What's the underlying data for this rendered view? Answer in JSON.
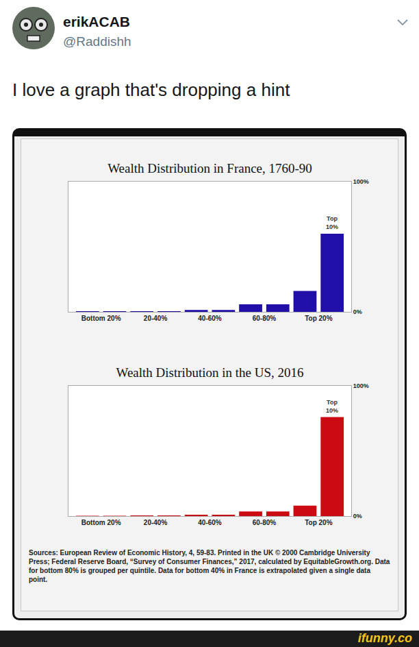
{
  "tweet": {
    "name": "erikACAB",
    "handle": "@Raddishh",
    "text": "I love a graph that's dropping a hint"
  },
  "chart_data": [
    {
      "type": "bar",
      "title": "Wealth Distribution in France, 1760-90",
      "categories": [
        "Bottom 20%",
        null,
        "20-40%",
        null,
        "40-60%",
        null,
        "60-80%",
        null,
        "Top 20%",
        null
      ],
      "values": [
        0.5,
        0.5,
        0.5,
        0.5,
        1.5,
        1.5,
        5.8,
        5.8,
        16,
        60
      ],
      "color": "#2010a8",
      "ylim": [
        0,
        100
      ],
      "yticks": [
        {
          "value": 0,
          "label": "0%"
        },
        {
          "value": 100,
          "label": "100%"
        }
      ],
      "grid": true,
      "annotations": [
        {
          "text": "Top 10%",
          "category_index": 9
        }
      ]
    },
    {
      "type": "bar",
      "title": "Wealth Distribution in the US, 2016",
      "categories": [
        "Bottom 20%",
        null,
        "20-40%",
        null,
        "40-60%",
        null,
        "60-80%",
        null,
        "Top 20%",
        null
      ],
      "values": [
        0.3,
        0.3,
        0.5,
        0.5,
        1,
        1,
        3.5,
        3.5,
        8,
        76
      ],
      "color": "#cc0a12",
      "ylim": [
        0,
        100
      ],
      "yticks": [
        {
          "value": 0,
          "label": "0%"
        },
        {
          "value": 100,
          "label": "100%"
        }
      ],
      "grid": true,
      "annotations": [
        {
          "text": "Top 10%",
          "category_index": 9
        }
      ]
    }
  ],
  "sources": "Sources: European Review of Economic History, 4, 59-83. Printed in the UK © 2000 Cambridge University Press; Federal Reserve Board, “Survey of Consumer Finances,” 2017, calculated by EquitableGrowth.org. Data for bottom 80% is grouped per quintile. Data for bottom 40% in France is extrapolated given a single data point.",
  "watermark": "ifunny.co"
}
